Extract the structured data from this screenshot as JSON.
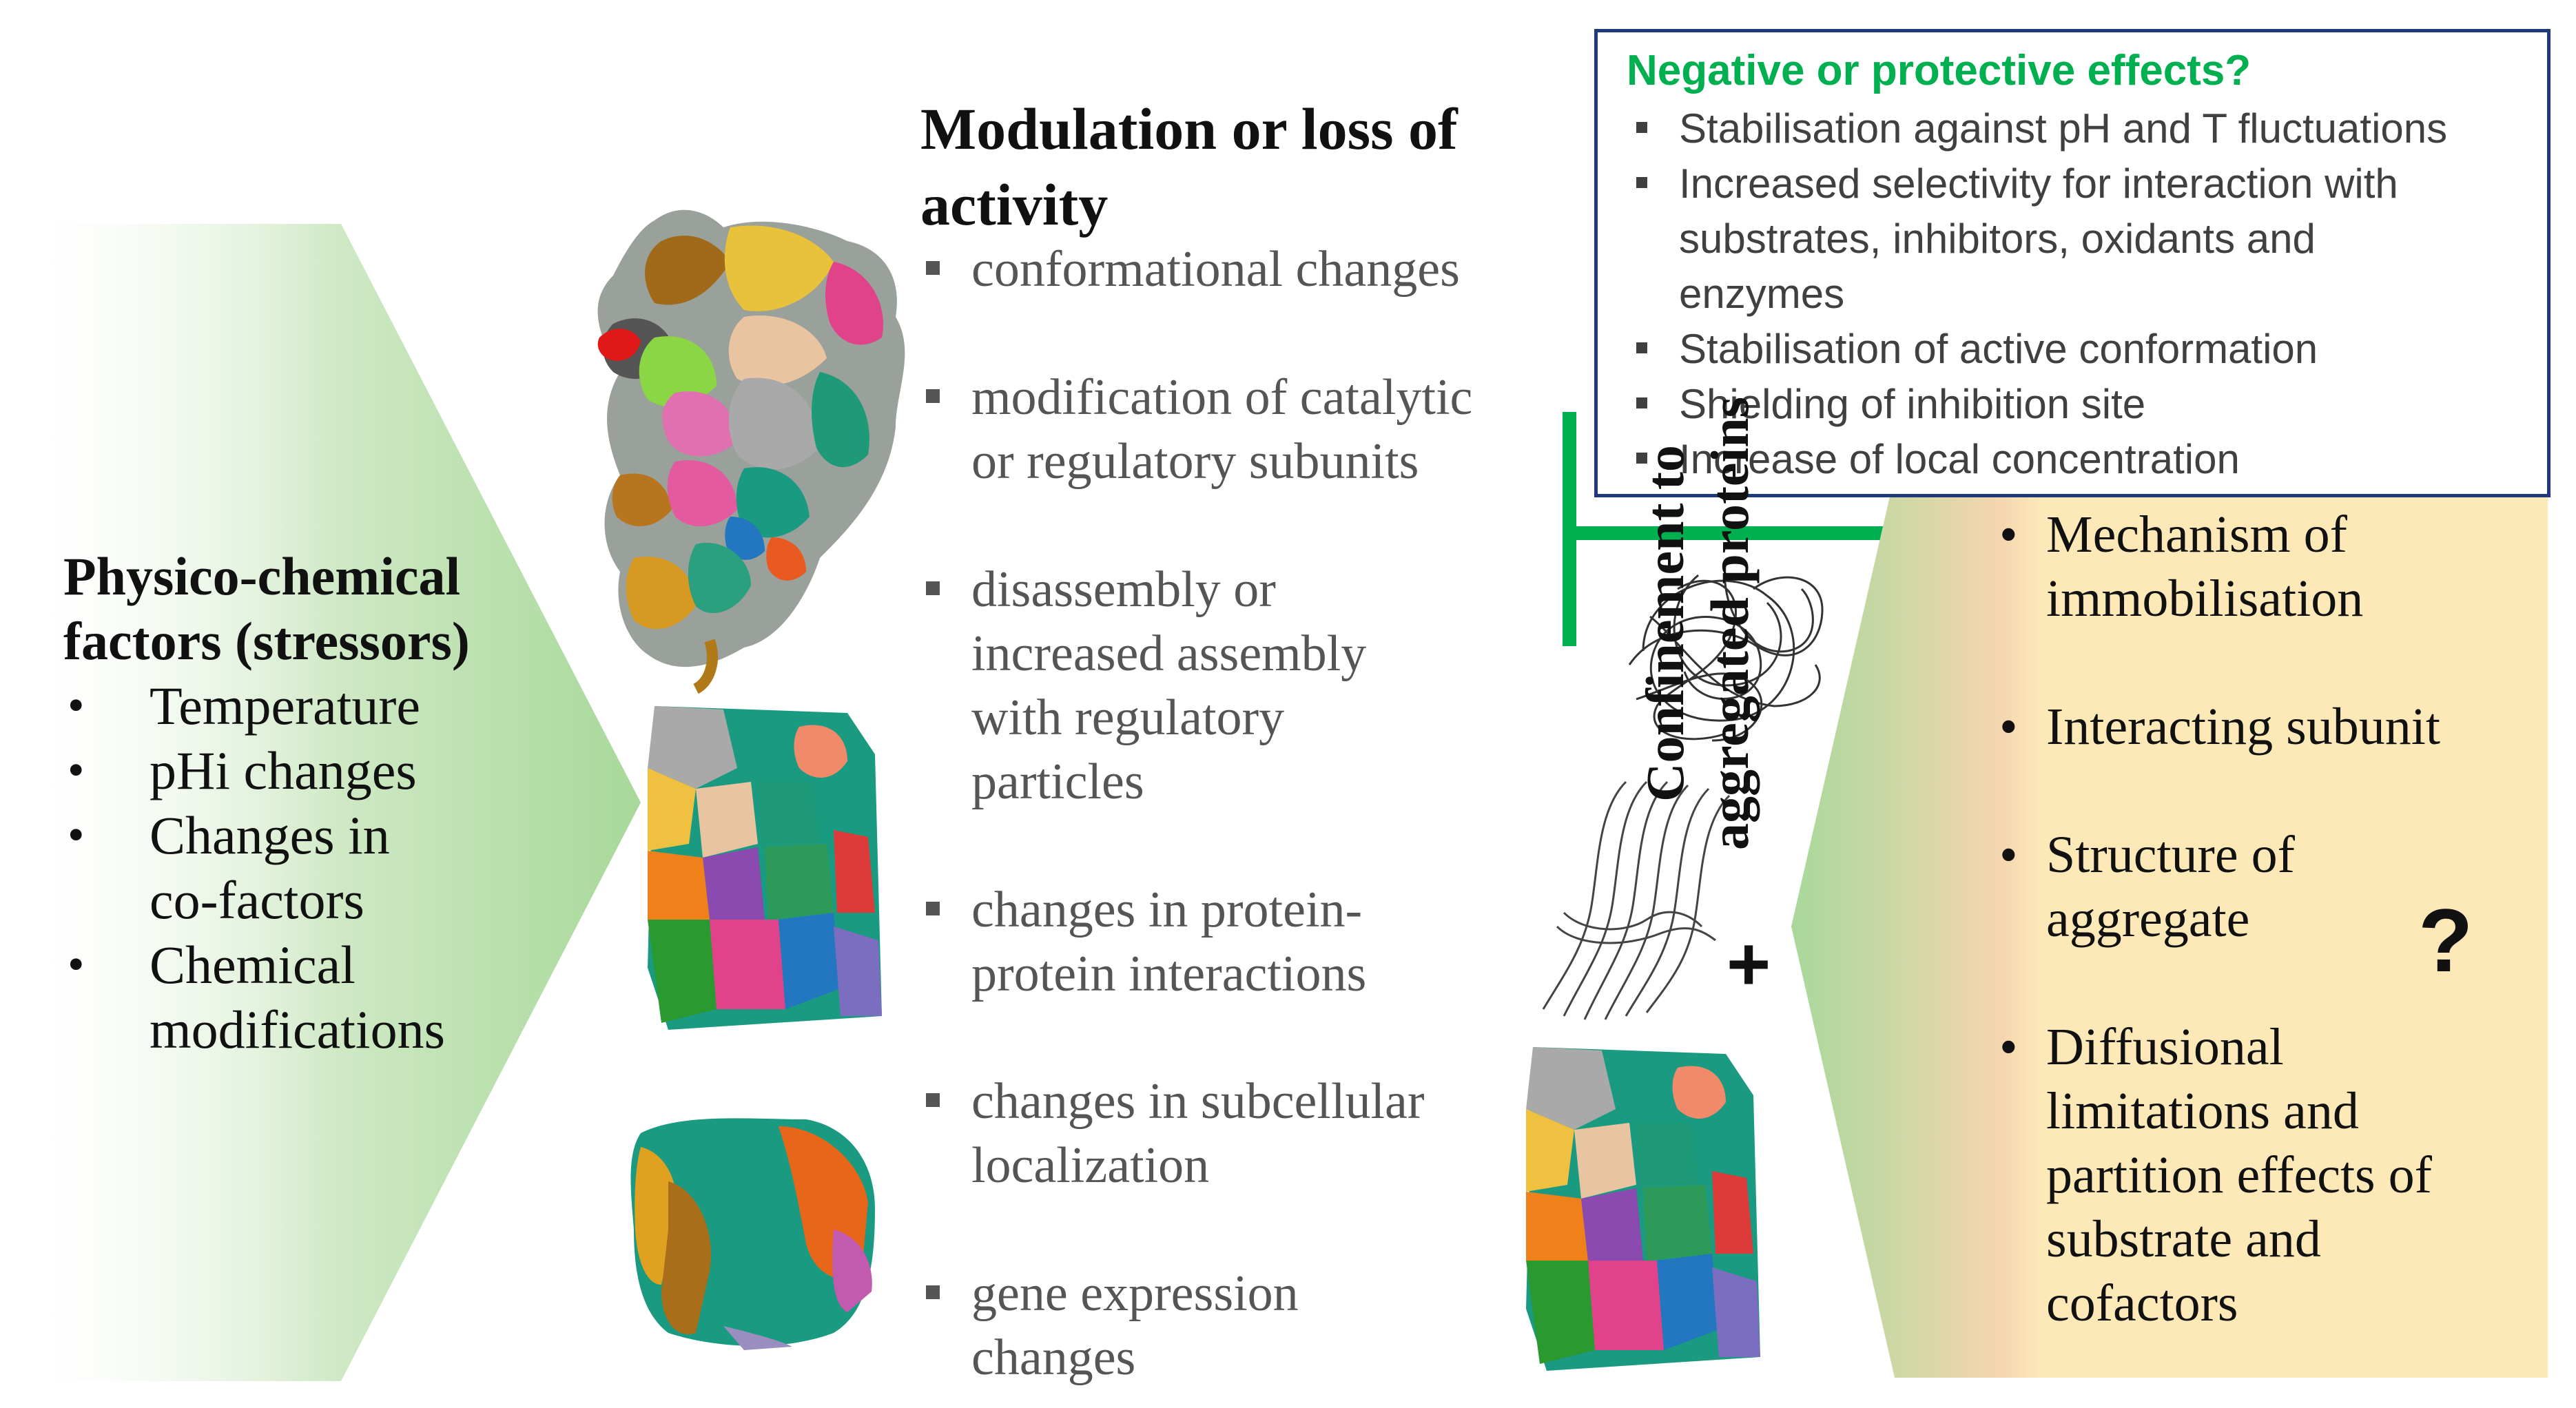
{
  "left_panel": {
    "title_line1": "Physico-chemical",
    "title_line2": "factors (stressors)",
    "items": [
      {
        "bullet": "•",
        "line1": "Temperature",
        "line2": ""
      },
      {
        "bullet": "•",
        "line1": "pHi changes",
        "line2": ""
      },
      {
        "bullet": "•",
        "line1": "Changes in",
        "line2": "co-factors"
      },
      {
        "bullet": "•",
        "line1": "Chemical",
        "line2": "modifications"
      }
    ]
  },
  "middle": {
    "title_line1": "Modulation  or loss of",
    "title_line2": "activity",
    "items": [
      {
        "line1": "conformational changes",
        "line2": "",
        "line3": "",
        "line4": ""
      },
      {
        "line1": "modification of catalytic",
        "line2": "or regulatory subunits",
        "line3": "",
        "line4": ""
      },
      {
        "line1": "disassembly  or",
        "line2": "increased assembly",
        "line3": "with regulatory",
        "line4": "particles"
      },
      {
        "line1": "changes in protein-",
        "line2": "protein interactions",
        "line3": "",
        "line4": ""
      },
      {
        "line1": "changes in subcellular",
        "line2": "localization",
        "line3": "",
        "line4": ""
      },
      {
        "line1": "gene expression",
        "line2": "changes",
        "line3": "",
        "line4": ""
      }
    ]
  },
  "effects_box": {
    "title": "Negative or protective effects?",
    "items": [
      {
        "line1": "Stabilisation against pH and T fluctuations",
        "line2": "",
        "line3": ""
      },
      {
        "line1": "Increased selectivity for interaction with",
        "line2": "substrates, inhibitors, oxidants and",
        "line3": "enzymes"
      },
      {
        "line1": "Stabilisation of active conformation",
        "line2": "",
        "line3": ""
      },
      {
        "line1": "Shielding of inhibition site",
        "line2": "",
        "line3": ""
      },
      {
        "line1": "Increase of local concentration",
        "line2": "",
        "line3": ""
      }
    ]
  },
  "right_panel": {
    "rotated_label_line1": "Confinement to",
    "rotated_label_line2": "aggregated proteins",
    "items": [
      {
        "bullet": "•",
        "line1": "Mechanism of",
        "line2": "immobilisation",
        "line3": "",
        "line4": "",
        "line5": ""
      },
      {
        "bullet": "•",
        "line1": "Interacting subunit",
        "line2": "",
        "line3": "",
        "line4": "",
        "line5": ""
      },
      {
        "bullet": "•",
        "line1": "Structure of",
        "line2": "aggregate",
        "line3": "",
        "line4": "",
        "line5": ""
      },
      {
        "bullet": "•",
        "line1": "Diffusional",
        "line2": "limitations and",
        "line3": "partition effects of",
        "line4": "substrate and",
        "line5": "cofactors"
      }
    ],
    "question_mark": "?",
    "plus": "+"
  },
  "colors": {
    "effects_title": "#00b050",
    "box_border": "#1f3a7a",
    "green_bar": "#00b050",
    "left_panel_green": "#a8d89a",
    "right_panel_yellow": "#fde9b8"
  },
  "icons": [
    "protein-complex-large",
    "protein-complex-medium",
    "protein-complex-small",
    "disordered-aggregate",
    "fibril-aggregate",
    "protein-complex-bottom"
  ]
}
